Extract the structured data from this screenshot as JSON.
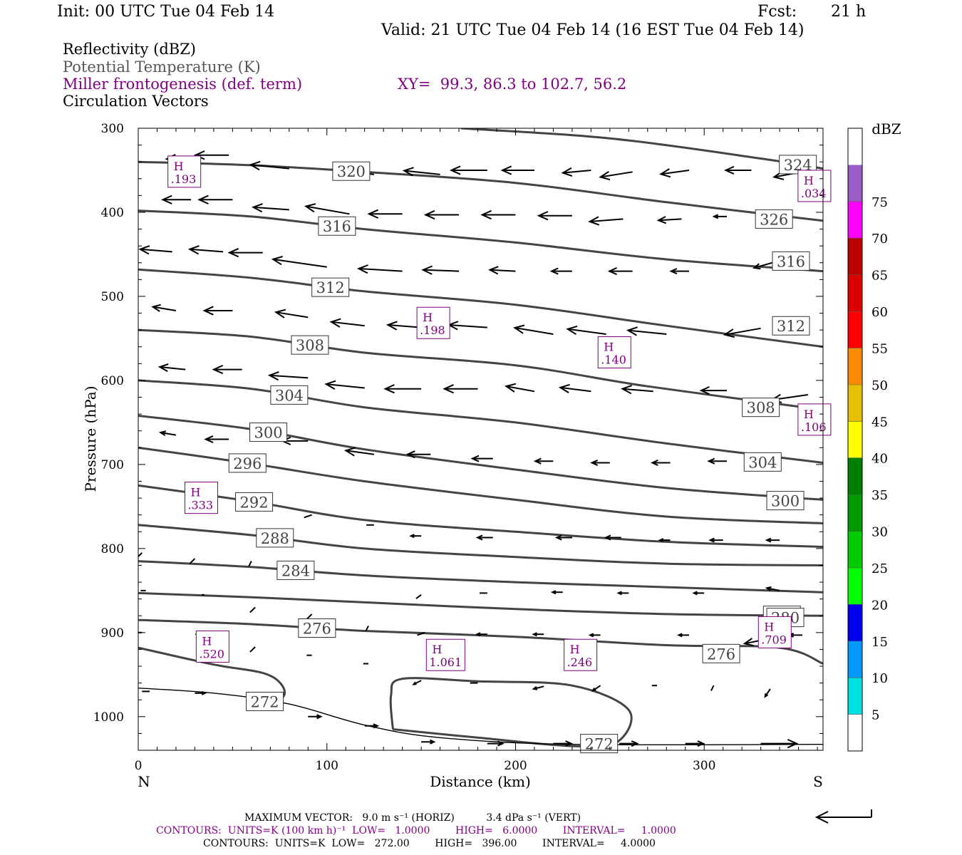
{
  "header": {
    "init": "Init: 00 UTC Tue 04 Feb 14",
    "fcst_label": "Fcst:",
    "fcst_value": "21 h",
    "valid": "Valid: 21 UTC Tue 04 Feb 14 (16 EST Tue 04 Feb 14)"
  },
  "legend": {
    "reflectivity": "Reflectivity (dBZ)",
    "theta": "Potential Temperature (K)",
    "frontogenesis": "Miller frontogenesis (def. term)",
    "xy": "XY=  99.3, 86.3 to 102.7, 56.2",
    "circulation": "Circulation Vectors"
  },
  "colors": {
    "theta": "#444444",
    "frontogenesis": "#800080",
    "vectors": "#000000"
  },
  "colorbar": {
    "title": "dBZ",
    "ticks": [
      "5",
      "10",
      "15",
      "20",
      "25",
      "30",
      "35",
      "40",
      "45",
      "50",
      "55",
      "60",
      "65",
      "70",
      "75"
    ],
    "colors": [
      "#ffffff",
      "#00e0e0",
      "#0099ff",
      "#0000ee",
      "#00ff00",
      "#00cc00",
      "#009900",
      "#008000",
      "#ffff00",
      "#e6c000",
      "#ff8c00",
      "#ff0000",
      "#dd0000",
      "#bb0000",
      "#ff00ff",
      "#9a5cc6",
      "#ffffff"
    ]
  },
  "footer": {
    "max_vector": "MAXIMUM VECTOR:   9.0 m s⁻¹ (HORIZ)          3.4 dPa s⁻¹ (VERT)",
    "contours_fronto": "CONTOURS:  UNITS=K (100 km h)⁻¹  LOW=   1.0000        HIGH=   6.0000        INTERVAL=     1.0000",
    "contours_theta": "CONTOURS:  UNITS=K  LOW=   272.00        HIGH=   396.00        INTERVAL=     4.0000"
  },
  "chart_data": {
    "type": "cross-section",
    "xlabel": "Distance (km)",
    "ylabel": "Pressure (hPa)",
    "xlim": [
      0,
      363
    ],
    "ylim": [
      1040,
      300
    ],
    "x_ticks": [
      0,
      100,
      200,
      300
    ],
    "y_ticks": [
      300,
      400,
      500,
      600,
      700,
      800,
      900,
      1000
    ],
    "left_end_label": "N",
    "right_end_label": "S",
    "theta_isentropes": [
      {
        "label": "324",
        "points": [
          [
            171,
            300
          ],
          [
            250,
            312
          ],
          [
            330,
            336
          ],
          [
            363,
            348
          ]
        ]
      },
      {
        "label": "320",
        "points": [
          [
            0,
            340
          ],
          [
            60,
            344
          ],
          [
            120,
            352
          ],
          [
            200,
            365
          ],
          [
            280,
            388
          ],
          [
            363,
            410
          ]
        ]
      },
      {
        "label": "316",
        "points": [
          [
            0,
            398
          ],
          [
            60,
            405
          ],
          [
            120,
            420
          ],
          [
            200,
            436
          ],
          [
            280,
            456
          ],
          [
            363,
            470
          ]
        ]
      },
      {
        "label": "312",
        "points": [
          [
            0,
            468
          ],
          [
            60,
            478
          ],
          [
            120,
            494
          ],
          [
            200,
            510
          ],
          [
            280,
            535
          ],
          [
            363,
            560
          ]
        ]
      },
      {
        "label": "308",
        "points": [
          [
            0,
            540
          ],
          [
            60,
            548
          ],
          [
            120,
            567
          ],
          [
            200,
            582
          ],
          [
            270,
            607
          ],
          [
            363,
            635
          ]
        ]
      },
      {
        "label": "304",
        "points": [
          [
            0,
            600
          ],
          [
            60,
            610
          ],
          [
            120,
            632
          ],
          [
            200,
            650
          ],
          [
            280,
            675
          ],
          [
            363,
            698
          ]
        ]
      },
      {
        "label": "300",
        "points": [
          [
            0,
            642
          ],
          [
            60,
            658
          ],
          [
            120,
            682
          ],
          [
            200,
            706
          ],
          [
            280,
            728
          ],
          [
            363,
            742
          ]
        ]
      },
      {
        "label": "296",
        "points": [
          [
            0,
            680
          ],
          [
            60,
            699
          ],
          [
            120,
            720
          ],
          [
            200,
            742
          ],
          [
            280,
            762
          ],
          [
            363,
            770
          ]
        ]
      },
      {
        "label": "292",
        "points": [
          [
            0,
            725
          ],
          [
            60,
            744
          ],
          [
            120,
            766
          ],
          [
            200,
            780
          ],
          [
            280,
            792
          ],
          [
            363,
            798
          ]
        ]
      },
      {
        "label": "288",
        "points": [
          [
            0,
            772
          ],
          [
            60,
            784
          ],
          [
            120,
            800
          ],
          [
            200,
            810
          ],
          [
            280,
            818
          ],
          [
            363,
            820
          ]
        ]
      },
      {
        "label": "284",
        "points": [
          [
            0,
            815
          ],
          [
            60,
            822
          ],
          [
            120,
            832
          ],
          [
            200,
            840
          ],
          [
            280,
            846
          ],
          [
            363,
            852
          ]
        ]
      },
      {
        "label": "280",
        "points": [
          [
            0,
            853
          ],
          [
            60,
            858
          ],
          [
            120,
            864
          ],
          [
            200,
            872
          ],
          [
            280,
            878
          ],
          [
            363,
            880
          ]
        ]
      },
      {
        "label": "276",
        "points": [
          [
            0,
            885
          ],
          [
            60,
            890
          ],
          [
            120,
            898
          ],
          [
            200,
            905
          ],
          [
            280,
            915
          ],
          [
            340,
            918
          ],
          [
            363,
            937
          ]
        ]
      },
      {
        "label": "272",
        "points": [
          [
            0,
            918
          ],
          [
            40,
            938
          ],
          [
            66,
            948
          ],
          [
            76,
            962
          ],
          [
            76,
            978
          ],
          [
            60,
            985
          ]
        ]
      },
      {
        "label": "272",
        "points": [
          [
            135,
            1015
          ],
          [
            134,
            975
          ],
          [
            140,
            955
          ],
          [
            180,
            958
          ],
          [
            230,
            963
          ],
          [
            260,
            992
          ],
          [
            254,
            1030
          ],
          [
            230,
            1035
          ],
          [
            180,
            1025
          ],
          [
            135,
            1015
          ]
        ]
      }
    ],
    "thin_contour": {
      "label": "272",
      "points": [
        [
          0,
          966
        ],
        [
          40,
          972
        ],
        [
          80,
          985
        ],
        [
          120,
          1010
        ],
        [
          160,
          1025
        ],
        [
          230,
          1033
        ],
        [
          363,
          1033
        ]
      ]
    },
    "fronto_maxima": [
      {
        "label": "H",
        "value": ".193",
        "x": 18,
        "p": 355
      },
      {
        "label": "H",
        "value": ".034",
        "x": 352,
        "p": 372
      },
      {
        "label": "H",
        "value": ".198",
        "x": 150,
        "p": 535
      },
      {
        "label": "H",
        "value": ".140",
        "x": 246,
        "p": 570
      },
      {
        "label": "H",
        "value": ".106",
        "x": 352,
        "p": 650
      },
      {
        "label": "H",
        "value": ".333",
        "x": 27,
        "p": 743
      },
      {
        "label": "H",
        "value": ".520",
        "x": 33,
        "p": 920
      },
      {
        "label": "H",
        "value": "1.061",
        "x": 155,
        "p": 930
      },
      {
        "label": "H",
        "value": ".246",
        "x": 228,
        "p": 930
      },
      {
        "label": "H",
        "value": ".709",
        "x": 331,
        "p": 903
      }
    ]
  }
}
